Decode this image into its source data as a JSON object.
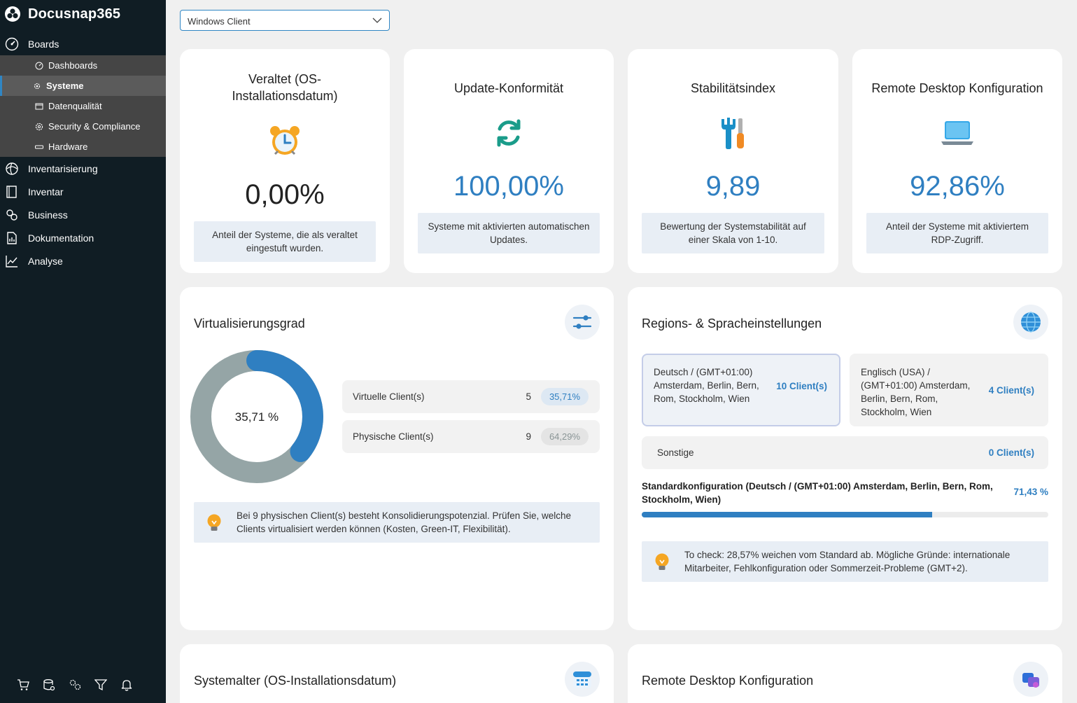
{
  "app": {
    "name": "Docusnap365"
  },
  "sidebar": {
    "boards_label": "Boards",
    "sub_items": [
      {
        "label": "Dashboards"
      },
      {
        "label": "Systeme"
      },
      {
        "label": "Datenqualität"
      },
      {
        "label": "Security & Compliance"
      },
      {
        "label": "Hardware"
      }
    ],
    "items": [
      {
        "label": "Inventarisierung"
      },
      {
        "label": "Inventar"
      },
      {
        "label": "Business"
      },
      {
        "label": "Dokumentation"
      },
      {
        "label": "Analyse"
      }
    ]
  },
  "filter": {
    "selected": "Windows Client"
  },
  "kpis": [
    {
      "title": "Veraltet (OS-Installationsdatum)",
      "value": "0,00%",
      "desc": "Anteil der Systeme, die als veraltet eingestuft wurden.",
      "color": "#222222"
    },
    {
      "title": "Update-Konformität",
      "value": "100,00%",
      "desc": "Systeme mit aktivierten automatischen Updates.",
      "color": "#2f7fc1"
    },
    {
      "title": "Stabilitätsindex",
      "value": "9,89",
      "desc": "Bewertung der Systemstabilität auf einer Skala von 1-10.",
      "color": "#2f7fc1"
    },
    {
      "title": "Remote Desktop Konfiguration",
      "value": "92,86%",
      "desc": "Anteil der Systeme mit aktiviertem RDP-Zugriff.",
      "color": "#2f7fc1"
    }
  ],
  "virtualization": {
    "title": "Virtualisierungsgrad",
    "center_label": "35,71 %",
    "virtual_fraction": 0.3571,
    "rows": [
      {
        "label": "Virtuelle Client(s)",
        "count": "5",
        "percent": "35,71%"
      },
      {
        "label": "Physische Client(s)",
        "count": "9",
        "percent": "64,29%"
      }
    ],
    "tip": "Bei 9 physischen Client(s) besteht Konsolidierungspotenzial. Prüfen Sie, welche Clients virtualisiert werden können (Kosten, Green-IT, Flexibilität).",
    "colors": {
      "virtual": "#2f7fc1",
      "physical": "#95a5a6"
    }
  },
  "regions": {
    "title": "Regions- & Spracheinstellungen",
    "items": [
      {
        "name": "Deutsch / (GMT+01:00) Amsterdam, Berlin, Bern, Rom, Stockholm, Wien",
        "clients": "10 Client(s)"
      },
      {
        "name": "Englisch (USA) / (GMT+01:00) Amsterdam, Berlin, Bern, Rom, Stockholm, Wien",
        "clients": "4 Client(s)"
      },
      {
        "name": "Sonstige",
        "clients": "0 Client(s)"
      }
    ],
    "standard_label": "Standardkonfiguration (Deutsch / (GMT+01:00) Amsterdam, Berlin, Bern, Rom, Stockholm, Wien)",
    "standard_percent": "71,43 %",
    "standard_fraction": 0.7143,
    "tip": "To check: 28,57% weichen vom Standard ab. Mögliche Gründe: internationale Mitarbeiter, Fehlkonfiguration oder Sommerzeit-Probleme (GMT+2)."
  },
  "bottom_cards": [
    {
      "title": "Systemalter (OS-Installationsdatum)"
    },
    {
      "title": "Remote Desktop Konfiguration"
    }
  ]
}
